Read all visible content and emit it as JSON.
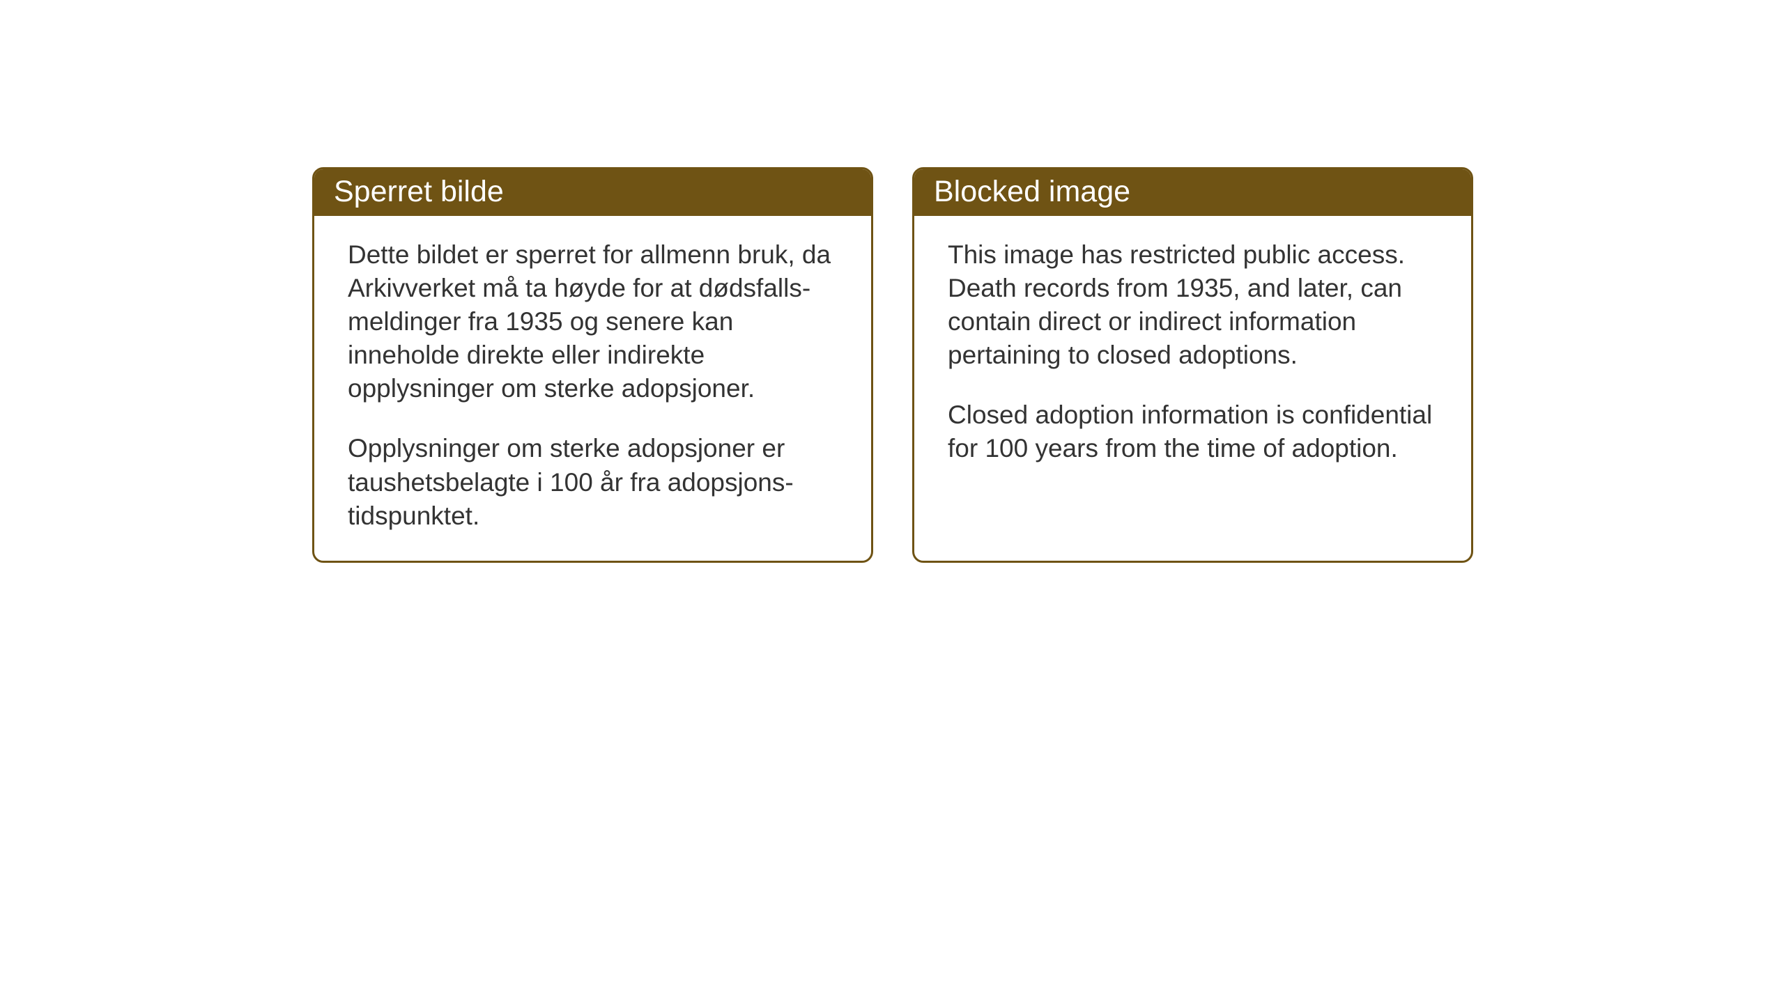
{
  "layout": {
    "background_color": "#ffffff",
    "card_border_color": "#6f5314",
    "card_border_width": 3,
    "card_border_radius": 16,
    "header_background_color": "#6f5314",
    "header_text_color": "#ffffff",
    "body_text_color": "#333333",
    "header_font_size": 43,
    "body_font_size": 37
  },
  "cards": {
    "norwegian": {
      "title": "Sperret bilde",
      "paragraph1": "Dette bildet er sperret for allmenn bruk, da Arkivverket må ta høyde for at dødsfalls-meldinger fra 1935 og senere kan inneholde direkte eller indirekte opplysninger om sterke adopsjoner.",
      "paragraph2": "Opplysninger om sterke adopsjoner er taushetsbelagte i 100 år fra adopsjons-tidspunktet."
    },
    "english": {
      "title": "Blocked image",
      "paragraph1": "This image has restricted public access. Death records from 1935, and later, can contain direct or indirect information pertaining to closed adoptions.",
      "paragraph2": "Closed adoption information is confidential for 100 years from the time of adoption."
    }
  }
}
